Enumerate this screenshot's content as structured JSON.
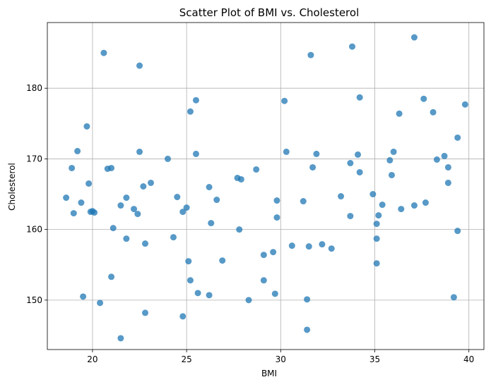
{
  "chart_data": {
    "type": "scatter",
    "title": "Scatter Plot of BMI vs. Cholesterol",
    "xlabel": "BMI",
    "ylabel": "Cholesterol",
    "xlim": [
      17.6,
      40.8
    ],
    "ylim": [
      143.0,
      189.3
    ],
    "xticks": [
      20,
      25,
      30,
      35,
      40
    ],
    "yticks": [
      150,
      160,
      170,
      180
    ],
    "grid": true,
    "marker_color": "#1f77b4",
    "marker_alpha": 0.75,
    "points": [
      {
        "x": 18.6,
        "y": 164.5
      },
      {
        "x": 18.9,
        "y": 168.7
      },
      {
        "x": 19.0,
        "y": 162.3
      },
      {
        "x": 19.2,
        "y": 171.1
      },
      {
        "x": 19.4,
        "y": 163.8
      },
      {
        "x": 19.5,
        "y": 150.5
      },
      {
        "x": 19.7,
        "y": 174.6
      },
      {
        "x": 19.8,
        "y": 166.5
      },
      {
        "x": 19.9,
        "y": 162.5
      },
      {
        "x": 20.0,
        "y": 162.6
      },
      {
        "x": 20.1,
        "y": 162.4
      },
      {
        "x": 20.4,
        "y": 149.6
      },
      {
        "x": 20.6,
        "y": 185.0
      },
      {
        "x": 20.8,
        "y": 168.6
      },
      {
        "x": 21.0,
        "y": 168.7
      },
      {
        "x": 21.0,
        "y": 153.3
      },
      {
        "x": 21.1,
        "y": 160.2
      },
      {
        "x": 21.5,
        "y": 163.4
      },
      {
        "x": 21.5,
        "y": 144.6
      },
      {
        "x": 21.8,
        "y": 164.5
      },
      {
        "x": 21.8,
        "y": 158.7
      },
      {
        "x": 22.2,
        "y": 162.9
      },
      {
        "x": 22.4,
        "y": 162.2
      },
      {
        "x": 22.5,
        "y": 171.0
      },
      {
        "x": 22.5,
        "y": 183.2
      },
      {
        "x": 22.7,
        "y": 166.1
      },
      {
        "x": 22.8,
        "y": 158.0
      },
      {
        "x": 22.8,
        "y": 148.2
      },
      {
        "x": 23.1,
        "y": 166.6
      },
      {
        "x": 24.0,
        "y": 170.0
      },
      {
        "x": 24.3,
        "y": 158.9
      },
      {
        "x": 24.5,
        "y": 164.6
      },
      {
        "x": 24.8,
        "y": 162.5
      },
      {
        "x": 24.8,
        "y": 147.7
      },
      {
        "x": 25.0,
        "y": 163.1
      },
      {
        "x": 25.1,
        "y": 155.5
      },
      {
        "x": 25.2,
        "y": 152.8
      },
      {
        "x": 25.2,
        "y": 176.7
      },
      {
        "x": 25.5,
        "y": 170.7
      },
      {
        "x": 25.5,
        "y": 178.3
      },
      {
        "x": 25.6,
        "y": 151.0
      },
      {
        "x": 26.2,
        "y": 150.7
      },
      {
        "x": 26.2,
        "y": 166.0
      },
      {
        "x": 26.3,
        "y": 160.9
      },
      {
        "x": 26.6,
        "y": 164.2
      },
      {
        "x": 26.9,
        "y": 155.6
      },
      {
        "x": 27.7,
        "y": 167.3
      },
      {
        "x": 27.8,
        "y": 160.0
      },
      {
        "x": 27.9,
        "y": 167.1
      },
      {
        "x": 28.3,
        "y": 150.0
      },
      {
        "x": 28.7,
        "y": 168.5
      },
      {
        "x": 29.1,
        "y": 156.4
      },
      {
        "x": 29.1,
        "y": 152.8
      },
      {
        "x": 29.6,
        "y": 156.8
      },
      {
        "x": 29.7,
        "y": 150.9
      },
      {
        "x": 29.8,
        "y": 164.1
      },
      {
        "x": 29.8,
        "y": 161.7
      },
      {
        "x": 30.2,
        "y": 178.2
      },
      {
        "x": 30.3,
        "y": 171.0
      },
      {
        "x": 30.6,
        "y": 157.7
      },
      {
        "x": 31.2,
        "y": 164.0
      },
      {
        "x": 31.4,
        "y": 150.1
      },
      {
        "x": 31.4,
        "y": 145.8
      },
      {
        "x": 31.5,
        "y": 157.6
      },
      {
        "x": 31.6,
        "y": 184.7
      },
      {
        "x": 31.7,
        "y": 168.8
      },
      {
        "x": 31.9,
        "y": 170.7
      },
      {
        "x": 32.2,
        "y": 157.9
      },
      {
        "x": 32.7,
        "y": 157.3
      },
      {
        "x": 33.2,
        "y": 164.7
      },
      {
        "x": 33.7,
        "y": 169.4
      },
      {
        "x": 33.7,
        "y": 161.9
      },
      {
        "x": 33.8,
        "y": 185.9
      },
      {
        "x": 34.1,
        "y": 170.6
      },
      {
        "x": 34.2,
        "y": 178.7
      },
      {
        "x": 34.2,
        "y": 168.1
      },
      {
        "x": 34.9,
        "y": 165.0
      },
      {
        "x": 35.1,
        "y": 160.8
      },
      {
        "x": 35.1,
        "y": 158.7
      },
      {
        "x": 35.1,
        "y": 155.2
      },
      {
        "x": 35.2,
        "y": 162.0
      },
      {
        "x": 35.4,
        "y": 163.5
      },
      {
        "x": 35.8,
        "y": 169.8
      },
      {
        "x": 35.9,
        "y": 167.7
      },
      {
        "x": 36.0,
        "y": 171.0
      },
      {
        "x": 36.3,
        "y": 176.4
      },
      {
        "x": 36.4,
        "y": 162.9
      },
      {
        "x": 37.1,
        "y": 187.2
      },
      {
        "x": 37.1,
        "y": 163.4
      },
      {
        "x": 37.6,
        "y": 178.5
      },
      {
        "x": 37.7,
        "y": 163.8
      },
      {
        "x": 38.1,
        "y": 176.6
      },
      {
        "x": 38.3,
        "y": 169.9
      },
      {
        "x": 38.7,
        "y": 170.4
      },
      {
        "x": 38.9,
        "y": 168.8
      },
      {
        "x": 38.9,
        "y": 166.6
      },
      {
        "x": 39.2,
        "y": 150.4
      },
      {
        "x": 39.4,
        "y": 159.8
      },
      {
        "x": 39.4,
        "y": 173.0
      },
      {
        "x": 39.8,
        "y": 177.7
      }
    ]
  }
}
